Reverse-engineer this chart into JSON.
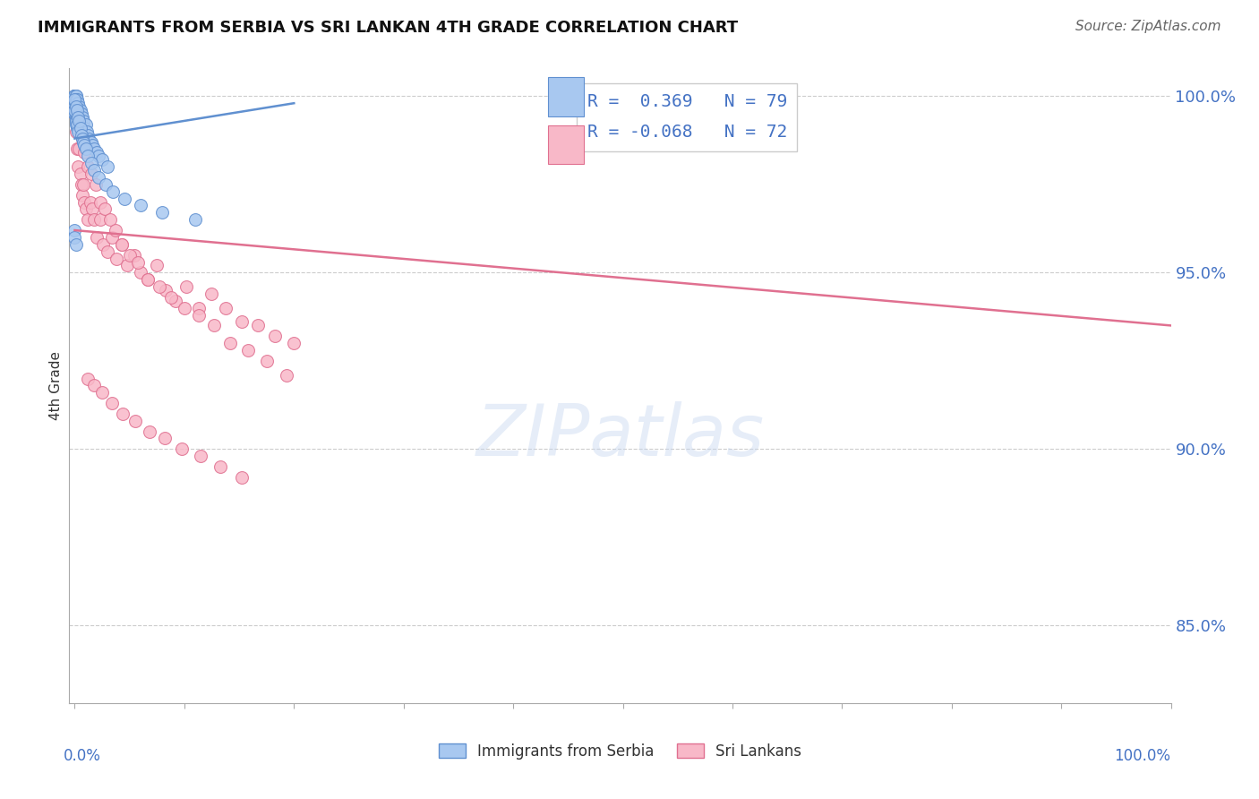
{
  "title": "IMMIGRANTS FROM SERBIA VS SRI LANKAN 4TH GRADE CORRELATION CHART",
  "source": "Source: ZipAtlas.com",
  "ylabel": "4th Grade",
  "watermark": "ZIPatlas",
  "legend_blue_r": "R =  0.369",
  "legend_blue_n": "N = 79",
  "legend_pink_r": "R = -0.068",
  "legend_pink_n": "N = 72",
  "blue_color": "#A8C8F0",
  "pink_color": "#F8B8C8",
  "blue_edge_color": "#6090D0",
  "pink_edge_color": "#E07090",
  "pink_trend_x": [
    0.0,
    1.0
  ],
  "pink_trend_y": [
    0.962,
    0.935
  ],
  "blue_trend_x": [
    0.0,
    0.2
  ],
  "blue_trend_y": [
    0.988,
    0.998
  ],
  "ylim": [
    0.828,
    1.008
  ],
  "xlim": [
    -0.005,
    1.0
  ],
  "yticks": [
    0.85,
    0.9,
    0.95,
    1.0
  ],
  "ytick_labels": [
    "85.0%",
    "90.0%",
    "95.0%",
    "100.0%"
  ],
  "blue_x": [
    0.0,
    0.0,
    0.0,
    0.0,
    0.0,
    0.0,
    0.0,
    0.0,
    0.0,
    0.0,
    0.001,
    0.001,
    0.001,
    0.001,
    0.001,
    0.001,
    0.001,
    0.001,
    0.001,
    0.001,
    0.002,
    0.002,
    0.002,
    0.002,
    0.002,
    0.002,
    0.003,
    0.003,
    0.003,
    0.003,
    0.004,
    0.004,
    0.004,
    0.005,
    0.005,
    0.006,
    0.006,
    0.007,
    0.008,
    0.009,
    0.01,
    0.011,
    0.012,
    0.013,
    0.015,
    0.016,
    0.018,
    0.02,
    0.022,
    0.025,
    0.03,
    0.0,
    0.0,
    0.001,
    0.001,
    0.002,
    0.002,
    0.003,
    0.003,
    0.004,
    0.005,
    0.006,
    0.007,
    0.008,
    0.009,
    0.01,
    0.012,
    0.015,
    0.018,
    0.022,
    0.028,
    0.035,
    0.045,
    0.06,
    0.08,
    0.11,
    0.0,
    0.0,
    0.001
  ],
  "blue_y": [
    1.0,
    1.0,
    1.0,
    1.0,
    1.0,
    0.998,
    0.998,
    0.997,
    0.996,
    0.995,
    1.0,
    1.0,
    0.999,
    0.998,
    0.997,
    0.996,
    0.995,
    0.994,
    0.993,
    0.992,
    0.999,
    0.997,
    0.996,
    0.994,
    0.993,
    0.991,
    0.998,
    0.996,
    0.994,
    0.992,
    0.997,
    0.995,
    0.993,
    0.996,
    0.993,
    0.995,
    0.992,
    0.994,
    0.993,
    0.991,
    0.992,
    0.99,
    0.989,
    0.988,
    0.987,
    0.986,
    0.985,
    0.984,
    0.983,
    0.982,
    0.98,
    0.999,
    0.996,
    0.997,
    0.993,
    0.996,
    0.992,
    0.994,
    0.99,
    0.993,
    0.991,
    0.989,
    0.988,
    0.987,
    0.986,
    0.985,
    0.983,
    0.981,
    0.979,
    0.977,
    0.975,
    0.973,
    0.971,
    0.969,
    0.967,
    0.965,
    0.962,
    0.96,
    0.958
  ],
  "pink_x": [
    0.001,
    0.002,
    0.003,
    0.004,
    0.005,
    0.006,
    0.007,
    0.008,
    0.009,
    0.01,
    0.012,
    0.014,
    0.016,
    0.018,
    0.02,
    0.023,
    0.026,
    0.03,
    0.034,
    0.038,
    0.043,
    0.048,
    0.054,
    0.06,
    0.067,
    0.075,
    0.083,
    0.092,
    0.102,
    0.113,
    0.125,
    0.138,
    0.152,
    0.167,
    0.183,
    0.2,
    0.003,
    0.005,
    0.007,
    0.009,
    0.012,
    0.015,
    0.019,
    0.023,
    0.027,
    0.032,
    0.037,
    0.043,
    0.05,
    0.058,
    0.067,
    0.077,
    0.088,
    0.1,
    0.113,
    0.127,
    0.142,
    0.158,
    0.175,
    0.193,
    0.012,
    0.018,
    0.025,
    0.034,
    0.044,
    0.055,
    0.068,
    0.082,
    0.098,
    0.115,
    0.133,
    0.152
  ],
  "pink_y": [
    0.99,
    0.985,
    0.98,
    0.985,
    0.978,
    0.975,
    0.972,
    0.975,
    0.97,
    0.968,
    0.965,
    0.97,
    0.968,
    0.965,
    0.96,
    0.965,
    0.958,
    0.956,
    0.96,
    0.954,
    0.958,
    0.952,
    0.955,
    0.95,
    0.948,
    0.952,
    0.945,
    0.942,
    0.946,
    0.94,
    0.944,
    0.94,
    0.936,
    0.935,
    0.932,
    0.93,
    0.996,
    0.992,
    0.988,
    0.984,
    0.98,
    0.978,
    0.975,
    0.97,
    0.968,
    0.965,
    0.962,
    0.958,
    0.955,
    0.953,
    0.948,
    0.946,
    0.943,
    0.94,
    0.938,
    0.935,
    0.93,
    0.928,
    0.925,
    0.921,
    0.92,
    0.918,
    0.916,
    0.913,
    0.91,
    0.908,
    0.905,
    0.903,
    0.9,
    0.898,
    0.895,
    0.892
  ]
}
